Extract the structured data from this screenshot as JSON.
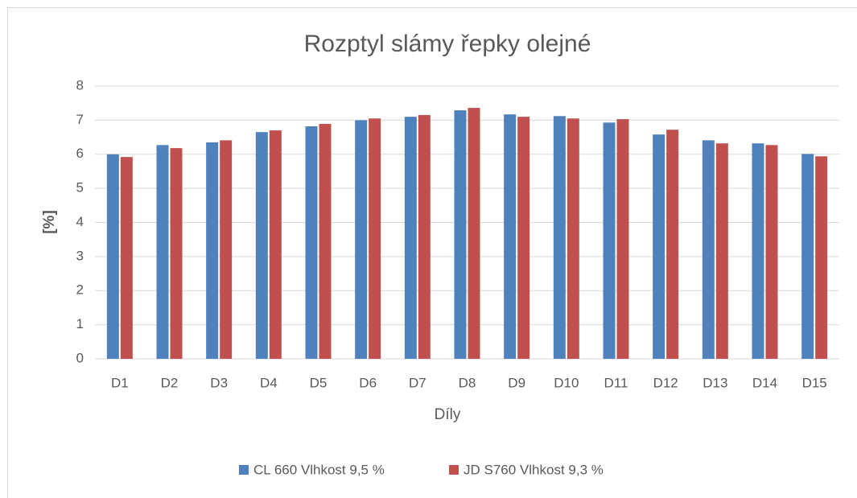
{
  "chart_data": {
    "type": "bar",
    "title": "Rozptyl slámy řepky olejné",
    "x_label": "Díly",
    "y_label": "[%]",
    "categories": [
      "D1",
      "D2",
      "D3",
      "D4",
      "D5",
      "D6",
      "D7",
      "D8",
      "D9",
      "D10",
      "D11",
      "D12",
      "D13",
      "D14",
      "D15"
    ],
    "series": [
      {
        "name": "CL 660 Vlhkost 9,5 %",
        "color": "#4f81bd",
        "values": [
          6.0,
          6.27,
          6.35,
          6.65,
          6.82,
          7.0,
          7.1,
          7.29,
          7.17,
          7.12,
          6.93,
          6.58,
          6.41,
          6.32,
          6.01
        ]
      },
      {
        "name": "JD S760 Vlhkost 9,3 %",
        "color": "#c0504d",
        "values": [
          5.92,
          6.18,
          6.41,
          6.7,
          6.89,
          7.05,
          7.15,
          7.36,
          7.1,
          7.05,
          7.03,
          6.72,
          6.32,
          6.27,
          5.94
        ]
      }
    ],
    "ylim": [
      0,
      8
    ],
    "yticks": [
      0,
      1,
      2,
      3,
      4,
      5,
      6,
      7,
      8
    ],
    "grid": true,
    "legend": "bottom"
  }
}
